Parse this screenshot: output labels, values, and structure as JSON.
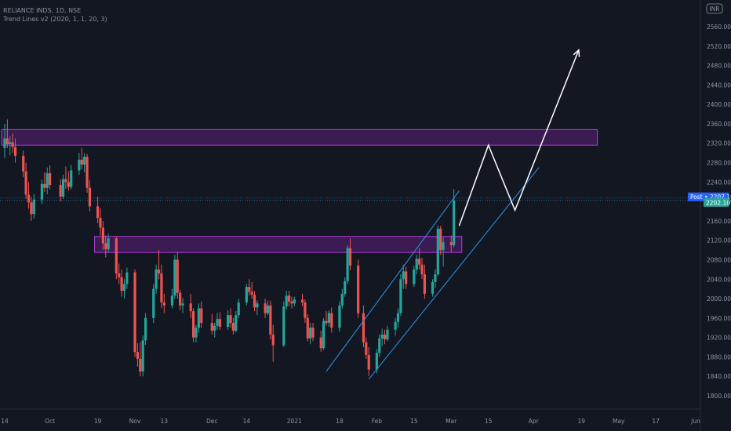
{
  "header": {
    "symbol_line": "RELIANCE INDS, 1D, NSE",
    "indicator_line": "Trend Lines v2 (2020, 1, 1, 20, 3)"
  },
  "currency_label": "INR",
  "colors": {
    "background": "#131722",
    "up": "#26a69a",
    "down": "#ef5350",
    "zone_fill": "#4a1d63",
    "zone_border": "#b33ddc",
    "channel": "#2a8bd8",
    "projection": "#ffffff",
    "badge_post": "#2962ff",
    "badge_last": "#26a69a"
  },
  "chart_data": {
    "type": "candlestick",
    "title": "RELIANCE INDS, 1D, NSE",
    "ylim": [
      1780,
      2600
    ],
    "y_ticks": [
      1800,
      1840,
      1880,
      1920,
      1960,
      2000,
      2040,
      2080,
      2120,
      2160,
      2200,
      2240,
      2280,
      2320,
      2360,
      2400,
      2440,
      2480,
      2520,
      2560
    ],
    "x_ticks": [
      {
        "label": "14",
        "date": "2020-09-14"
      },
      {
        "label": "Oct",
        "date": "2020-10-01"
      },
      {
        "label": "19",
        "date": "2020-10-19"
      },
      {
        "label": "Nov",
        "date": "2020-11-02"
      },
      {
        "label": "13",
        "date": "2020-11-13"
      },
      {
        "label": "Dec",
        "date": "2020-12-01"
      },
      {
        "label": "14",
        "date": "2020-12-14"
      },
      {
        "label": "2021",
        "date": "2021-01-01"
      },
      {
        "label": "18",
        "date": "2021-01-18"
      },
      {
        "label": "Feb",
        "date": "2021-02-01"
      },
      {
        "label": "15",
        "date": "2021-02-15"
      },
      {
        "label": "Mar",
        "date": "2021-03-01"
      },
      {
        "label": "15",
        "date": "2021-03-15"
      },
      {
        "label": "Apr",
        "date": "2021-04-01"
      },
      {
        "label": "19",
        "date": "2021-04-19"
      },
      {
        "label": "May",
        "date": "2021-05-03"
      },
      {
        "label": "17",
        "date": "2021-05-17"
      },
      {
        "label": "Jun",
        "date": "2021-06-01"
      }
    ],
    "candles": [
      {
        "date": "2020-09-14",
        "o": 2310,
        "h": 2360,
        "l": 2290,
        "c": 2330
      },
      {
        "date": "2020-09-15",
        "o": 2330,
        "h": 2369,
        "l": 2310,
        "c": 2318
      },
      {
        "date": "2020-09-16",
        "o": 2318,
        "h": 2335,
        "l": 2295,
        "c": 2322
      },
      {
        "date": "2020-09-17",
        "o": 2322,
        "h": 2340,
        "l": 2300,
        "c": 2312
      },
      {
        "date": "2020-09-18",
        "o": 2312,
        "h": 2330,
        "l": 2280,
        "c": 2294
      },
      {
        "date": "2020-09-21",
        "o": 2294,
        "h": 2305,
        "l": 2250,
        "c": 2262
      },
      {
        "date": "2020-09-22",
        "o": 2262,
        "h": 2280,
        "l": 2205,
        "c": 2214
      },
      {
        "date": "2020-09-23",
        "o": 2214,
        "h": 2240,
        "l": 2185,
        "c": 2198
      },
      {
        "date": "2020-09-24",
        "o": 2198,
        "h": 2210,
        "l": 2160,
        "c": 2174
      },
      {
        "date": "2020-09-25",
        "o": 2174,
        "h": 2215,
        "l": 2165,
        "c": 2204
      },
      {
        "date": "2020-09-28",
        "o": 2204,
        "h": 2245,
        "l": 2195,
        "c": 2236
      },
      {
        "date": "2020-09-29",
        "o": 2236,
        "h": 2260,
        "l": 2220,
        "c": 2228
      },
      {
        "date": "2020-09-30",
        "o": 2228,
        "h": 2270,
        "l": 2215,
        "c": 2258
      },
      {
        "date": "2020-10-01",
        "o": 2258,
        "h": 2275,
        "l": 2225,
        "c": 2234
      },
      {
        "date": "2020-10-05",
        "o": 2234,
        "h": 2246,
        "l": 2200,
        "c": 2210
      },
      {
        "date": "2020-10-06",
        "o": 2210,
        "h": 2255,
        "l": 2205,
        "c": 2246
      },
      {
        "date": "2020-10-07",
        "o": 2246,
        "h": 2272,
        "l": 2226,
        "c": 2240
      },
      {
        "date": "2020-10-08",
        "o": 2240,
        "h": 2262,
        "l": 2222,
        "c": 2230
      },
      {
        "date": "2020-10-09",
        "o": 2230,
        "h": 2275,
        "l": 2225,
        "c": 2264
      },
      {
        "date": "2020-10-12",
        "o": 2264,
        "h": 2300,
        "l": 2255,
        "c": 2286
      },
      {
        "date": "2020-10-13",
        "o": 2286,
        "h": 2310,
        "l": 2266,
        "c": 2276
      },
      {
        "date": "2020-10-14",
        "o": 2276,
        "h": 2300,
        "l": 2260,
        "c": 2292
      },
      {
        "date": "2020-10-15",
        "o": 2292,
        "h": 2298,
        "l": 2218,
        "c": 2228
      },
      {
        "date": "2020-10-16",
        "o": 2228,
        "h": 2244,
        "l": 2180,
        "c": 2190
      },
      {
        "date": "2020-10-19",
        "o": 2190,
        "h": 2210,
        "l": 2155,
        "c": 2166
      },
      {
        "date": "2020-10-20",
        "o": 2166,
        "h": 2186,
        "l": 2130,
        "c": 2146
      },
      {
        "date": "2020-10-21",
        "o": 2146,
        "h": 2160,
        "l": 2100,
        "c": 2114
      },
      {
        "date": "2020-10-22",
        "o": 2114,
        "h": 2130,
        "l": 2085,
        "c": 2102
      },
      {
        "date": "2020-10-23",
        "o": 2102,
        "h": 2134,
        "l": 2096,
        "c": 2124
      },
      {
        "date": "2020-10-26",
        "o": 2124,
        "h": 2128,
        "l": 2040,
        "c": 2052
      },
      {
        "date": "2020-10-27",
        "o": 2052,
        "h": 2072,
        "l": 2030,
        "c": 2044
      },
      {
        "date": "2020-10-28",
        "o": 2044,
        "h": 2060,
        "l": 2004,
        "c": 2016
      },
      {
        "date": "2020-10-29",
        "o": 2016,
        "h": 2040,
        "l": 2000,
        "c": 2030
      },
      {
        "date": "2020-10-30",
        "o": 2030,
        "h": 2064,
        "l": 2020,
        "c": 2054
      },
      {
        "date": "2020-11-02",
        "o": 2054,
        "h": 2060,
        "l": 1880,
        "c": 1890
      },
      {
        "date": "2020-11-03",
        "o": 1890,
        "h": 1908,
        "l": 1860,
        "c": 1876
      },
      {
        "date": "2020-11-04",
        "o": 1876,
        "h": 1910,
        "l": 1840,
        "c": 1850
      },
      {
        "date": "2020-11-05",
        "o": 1850,
        "h": 1924,
        "l": 1840,
        "c": 1914
      },
      {
        "date": "2020-11-06",
        "o": 1914,
        "h": 1970,
        "l": 1905,
        "c": 1960
      },
      {
        "date": "2020-11-09",
        "o": 1960,
        "h": 2030,
        "l": 1950,
        "c": 2020
      },
      {
        "date": "2020-11-10",
        "o": 2020,
        "h": 2070,
        "l": 2010,
        "c": 2060
      },
      {
        "date": "2020-11-11",
        "o": 2060,
        "h": 2100,
        "l": 2040,
        "c": 2052
      },
      {
        "date": "2020-11-12",
        "o": 2052,
        "h": 2070,
        "l": 1980,
        "c": 1992
      },
      {
        "date": "2020-11-13",
        "o": 1992,
        "h": 2010,
        "l": 1970,
        "c": 1986
      },
      {
        "date": "2020-11-16",
        "o": 1986,
        "h": 2020,
        "l": 1980,
        "c": 2006
      },
      {
        "date": "2020-11-17",
        "o": 2006,
        "h": 2090,
        "l": 2000,
        "c": 2080
      },
      {
        "date": "2020-11-18",
        "o": 2080,
        "h": 2096,
        "l": 2000,
        "c": 2012
      },
      {
        "date": "2020-11-19",
        "o": 2012,
        "h": 2018,
        "l": 1976,
        "c": 1986
      },
      {
        "date": "2020-11-20",
        "o": 1986,
        "h": 2002,
        "l": 1970,
        "c": 1990
      },
      {
        "date": "2020-11-23",
        "o": 1990,
        "h": 2010,
        "l": 1960,
        "c": 1974
      },
      {
        "date": "2020-11-24",
        "o": 1974,
        "h": 1980,
        "l": 1910,
        "c": 1920
      },
      {
        "date": "2020-11-25",
        "o": 1920,
        "h": 1946,
        "l": 1910,
        "c": 1940
      },
      {
        "date": "2020-11-26",
        "o": 1940,
        "h": 1990,
        "l": 1930,
        "c": 1980
      },
      {
        "date": "2020-11-27",
        "o": 1980,
        "h": 1994,
        "l": 1940,
        "c": 1950
      },
      {
        "date": "2020-12-01",
        "o": 1950,
        "h": 1968,
        "l": 1926,
        "c": 1934
      },
      {
        "date": "2020-12-02",
        "o": 1934,
        "h": 1950,
        "l": 1920,
        "c": 1944
      },
      {
        "date": "2020-12-03",
        "o": 1944,
        "h": 1970,
        "l": 1936,
        "c": 1958
      },
      {
        "date": "2020-12-04",
        "o": 1958,
        "h": 1972,
        "l": 1936,
        "c": 1942
      },
      {
        "date": "2020-12-07",
        "o": 1942,
        "h": 1976,
        "l": 1936,
        "c": 1966
      },
      {
        "date": "2020-12-08",
        "o": 1966,
        "h": 1980,
        "l": 1940,
        "c": 1950
      },
      {
        "date": "2020-12-09",
        "o": 1950,
        "h": 1960,
        "l": 1926,
        "c": 1934
      },
      {
        "date": "2020-12-10",
        "o": 1934,
        "h": 1974,
        "l": 1930,
        "c": 1966
      },
      {
        "date": "2020-12-11",
        "o": 1966,
        "h": 2000,
        "l": 1960,
        "c": 1992
      },
      {
        "date": "2020-12-14",
        "o": 1992,
        "h": 2030,
        "l": 1986,
        "c": 2024
      },
      {
        "date": "2020-12-15",
        "o": 2024,
        "h": 2040,
        "l": 2006,
        "c": 2014
      },
      {
        "date": "2020-12-16",
        "o": 2014,
        "h": 2034,
        "l": 2000,
        "c": 2008
      },
      {
        "date": "2020-12-17",
        "o": 2008,
        "h": 2016,
        "l": 1974,
        "c": 1982
      },
      {
        "date": "2020-12-18",
        "o": 1982,
        "h": 1996,
        "l": 1966,
        "c": 1990
      },
      {
        "date": "2020-12-21",
        "o": 1990,
        "h": 2000,
        "l": 1960,
        "c": 1970
      },
      {
        "date": "2020-12-22",
        "o": 1970,
        "h": 1996,
        "l": 1966,
        "c": 1986
      },
      {
        "date": "2020-12-23",
        "o": 1986,
        "h": 1996,
        "l": 1916,
        "c": 1926
      },
      {
        "date": "2020-12-24",
        "o": 1926,
        "h": 1946,
        "l": 1870,
        "c": 1904
      },
      {
        "date": "2020-12-28",
        "o": 1904,
        "h": 1994,
        "l": 1900,
        "c": 1984
      },
      {
        "date": "2020-12-29",
        "o": 1984,
        "h": 2016,
        "l": 1978,
        "c": 2006
      },
      {
        "date": "2020-12-30",
        "o": 2006,
        "h": 2016,
        "l": 1984,
        "c": 1994
      },
      {
        "date": "2020-12-31",
        "o": 1994,
        "h": 2004,
        "l": 1980,
        "c": 1990
      },
      {
        "date": "2021-01-01",
        "o": 1990,
        "h": 2004,
        "l": 1984,
        "c": 1998
      },
      {
        "date": "2021-01-04",
        "o": 1998,
        "h": 2010,
        "l": 1984,
        "c": 1992
      },
      {
        "date": "2021-01-05",
        "o": 1992,
        "h": 1998,
        "l": 1950,
        "c": 1960
      },
      {
        "date": "2021-01-06",
        "o": 1960,
        "h": 1968,
        "l": 1912,
        "c": 1918
      },
      {
        "date": "2021-01-07",
        "o": 1918,
        "h": 1950,
        "l": 1906,
        "c": 1940
      },
      {
        "date": "2021-01-08",
        "o": 1940,
        "h": 1950,
        "l": 1912,
        "c": 1920
      },
      {
        "date": "2021-01-11",
        "o": 1920,
        "h": 1934,
        "l": 1890,
        "c": 1898
      },
      {
        "date": "2021-01-12",
        "o": 1898,
        "h": 1960,
        "l": 1894,
        "c": 1954
      },
      {
        "date": "2021-01-13",
        "o": 1954,
        "h": 1974,
        "l": 1944,
        "c": 1950
      },
      {
        "date": "2021-01-14",
        "o": 1950,
        "h": 1976,
        "l": 1942,
        "c": 1970
      },
      {
        "date": "2021-01-15",
        "o": 1970,
        "h": 1982,
        "l": 1930,
        "c": 1940
      },
      {
        "date": "2021-01-18",
        "o": 1940,
        "h": 1994,
        "l": 1932,
        "c": 1986
      },
      {
        "date": "2021-01-19",
        "o": 1986,
        "h": 2020,
        "l": 1980,
        "c": 2010
      },
      {
        "date": "2021-01-20",
        "o": 2010,
        "h": 2044,
        "l": 2004,
        "c": 2036
      },
      {
        "date": "2021-01-21",
        "o": 2036,
        "h": 2110,
        "l": 2030,
        "c": 2104
      },
      {
        "date": "2021-01-22",
        "o": 2104,
        "h": 2124,
        "l": 2058,
        "c": 2068
      },
      {
        "date": "2021-01-25",
        "o": 2068,
        "h": 2080,
        "l": 1960,
        "c": 1970
      },
      {
        "date": "2021-01-27",
        "o": 1970,
        "h": 1986,
        "l": 1900,
        "c": 1910
      },
      {
        "date": "2021-01-28",
        "o": 1910,
        "h": 1920,
        "l": 1876,
        "c": 1884
      },
      {
        "date": "2021-01-29",
        "o": 1884,
        "h": 1900,
        "l": 1840,
        "c": 1854
      },
      {
        "date": "2021-02-01",
        "o": 1854,
        "h": 1896,
        "l": 1846,
        "c": 1888
      },
      {
        "date": "2021-02-02",
        "o": 1888,
        "h": 1926,
        "l": 1880,
        "c": 1918
      },
      {
        "date": "2021-02-03",
        "o": 1918,
        "h": 1938,
        "l": 1902,
        "c": 1926
      },
      {
        "date": "2021-02-04",
        "o": 1926,
        "h": 1936,
        "l": 1906,
        "c": 1916
      },
      {
        "date": "2021-02-05",
        "o": 1916,
        "h": 1944,
        "l": 1912,
        "c": 1936
      },
      {
        "date": "2021-02-08",
        "o": 1936,
        "h": 1960,
        "l": 1924,
        "c": 1952
      },
      {
        "date": "2021-02-09",
        "o": 1952,
        "h": 1980,
        "l": 1940,
        "c": 1970
      },
      {
        "date": "2021-02-10",
        "o": 1970,
        "h": 2050,
        "l": 1964,
        "c": 2040
      },
      {
        "date": "2021-02-11",
        "o": 2040,
        "h": 2070,
        "l": 2020,
        "c": 2056
      },
      {
        "date": "2021-02-12",
        "o": 2056,
        "h": 2066,
        "l": 2020,
        "c": 2030
      },
      {
        "date": "2021-02-15",
        "o": 2030,
        "h": 2068,
        "l": 2024,
        "c": 2060
      },
      {
        "date": "2021-02-16",
        "o": 2060,
        "h": 2090,
        "l": 2050,
        "c": 2082
      },
      {
        "date": "2021-02-17",
        "o": 2082,
        "h": 2104,
        "l": 2060,
        "c": 2070
      },
      {
        "date": "2021-02-18",
        "o": 2070,
        "h": 2084,
        "l": 2040,
        "c": 2050
      },
      {
        "date": "2021-02-19",
        "o": 2050,
        "h": 2070,
        "l": 2000,
        "c": 2010
      },
      {
        "date": "2021-02-22",
        "o": 2010,
        "h": 2040,
        "l": 2004,
        "c": 2034
      },
      {
        "date": "2021-02-23",
        "o": 2034,
        "h": 2060,
        "l": 2022,
        "c": 2050
      },
      {
        "date": "2021-02-24",
        "o": 2050,
        "h": 2150,
        "l": 2046,
        "c": 2144
      },
      {
        "date": "2021-02-25",
        "o": 2144,
        "h": 2150,
        "l": 2090,
        "c": 2100
      },
      {
        "date": "2021-02-26",
        "o": 2100,
        "h": 2126,
        "l": 2066,
        "c": 2116
      },
      {
        "date": "2021-03-01",
        "o": 2116,
        "h": 2130,
        "l": 2096,
        "c": 2110
      },
      {
        "date": "2021-03-02",
        "o": 2110,
        "h": 2226,
        "l": 2106,
        "c": 2202.1
      }
    ],
    "zones": [
      {
        "from_date": "2020-09-14",
        "to_date": "2021-04-25",
        "low": 2316,
        "high": 2348
      },
      {
        "from_date": "2020-10-19",
        "to_date": "2021-03-05",
        "low": 2095,
        "high": 2128
      }
    ],
    "channel_lines": [
      {
        "from": {
          "date": "2021-01-13",
          "value": 1850
        },
        "to": {
          "date": "2021-03-04",
          "value": 2222
        }
      },
      {
        "from": {
          "date": "2021-01-29",
          "value": 1834
        },
        "to": {
          "date": "2021-04-03",
          "value": 2270
        }
      }
    ],
    "projection_path": [
      {
        "date": "2021-03-04",
        "value": 2150
      },
      {
        "date": "2021-03-15",
        "value": 2316
      },
      {
        "date": "2021-03-25",
        "value": 2182
      },
      {
        "date": "2021-04-18",
        "value": 2512
      }
    ],
    "price_lines": [
      {
        "label": "Post",
        "value": 2207.1,
        "text": "2207.10"
      },
      {
        "label": "",
        "value": 2202.1,
        "text": "2202.10"
      }
    ]
  }
}
